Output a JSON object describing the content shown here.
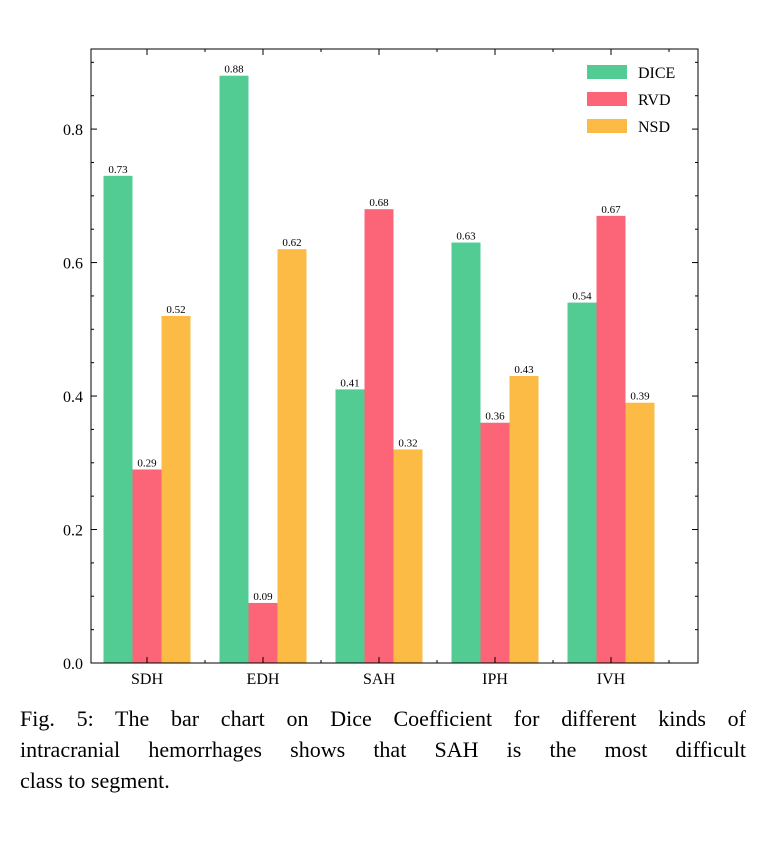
{
  "chart_data": {
    "type": "bar",
    "categories": [
      "SDH",
      "EDH",
      "SAH",
      "IPH",
      "IVH"
    ],
    "series": [
      {
        "name": "DICE",
        "color": "#52CC93",
        "values": [
          0.73,
          0.88,
          0.41,
          0.63,
          0.54
        ],
        "labels": [
          "0.73",
          "0.88",
          "0.41",
          "0.63",
          "0.54"
        ]
      },
      {
        "name": "RVD",
        "color": "#FC6577",
        "values": [
          0.29,
          0.09,
          0.68,
          0.36,
          0.67
        ],
        "labels": [
          "0.29",
          "0.09",
          "0.68",
          "0.36",
          "0.67"
        ]
      },
      {
        "name": "NSD",
        "color": "#FCBB44",
        "values": [
          0.52,
          0.62,
          0.32,
          0.43,
          0.39
        ],
        "labels": [
          "0.52",
          "0.62",
          "0.32",
          "0.43",
          "0.39"
        ]
      }
    ],
    "yticks": [
      0.0,
      0.2,
      0.4,
      0.6,
      0.8
    ],
    "ytick_labels": [
      "0.0",
      "0.2",
      "0.4",
      "0.6",
      "0.8"
    ],
    "ylim": [
      0,
      0.92
    ],
    "title": "",
    "xlabel": "",
    "ylabel": "",
    "legend_position": "top-right"
  },
  "caption": {
    "line1": "Fig. 5: The bar chart on Dice Coefficient for different kinds of",
    "line2": "intracranial hemorrhages shows that SAH is the most difficult",
    "line3": "class to segment."
  }
}
